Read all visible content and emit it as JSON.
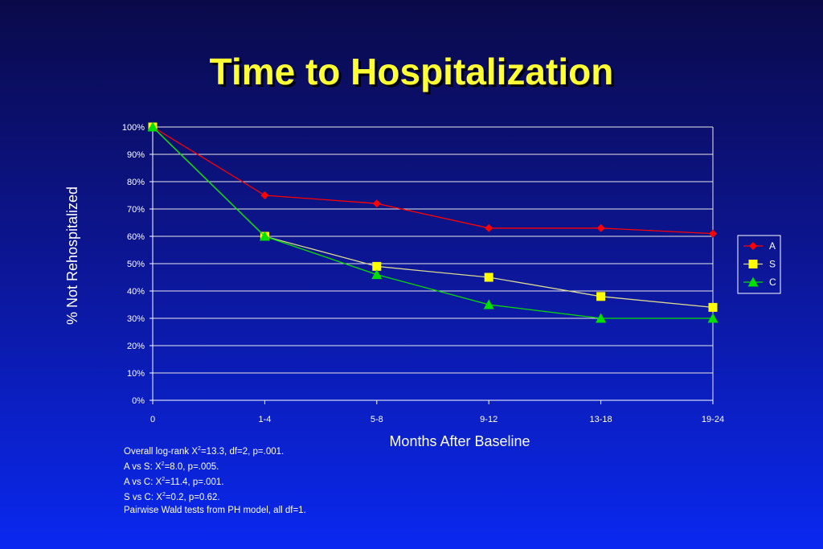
{
  "slide": {
    "title": "Time to Hospitalization"
  },
  "chart_data": {
    "type": "line",
    "categories": [
      "0",
      "1-4",
      "5-8",
      "9-12",
      "13-18",
      "19-24"
    ],
    "series": [
      {
        "name": "A",
        "values": [
          100,
          75,
          72,
          63,
          63,
          61
        ],
        "color": "#ff0000",
        "marker": "diamond"
      },
      {
        "name": "S",
        "values": [
          100,
          60,
          49,
          45,
          38,
          34
        ],
        "color": "#ffff00",
        "line_color": "#d8d890",
        "marker": "square"
      },
      {
        "name": "C",
        "values": [
          100,
          60,
          46,
          35,
          30,
          30
        ],
        "color": "#00e000",
        "marker": "triangle"
      }
    ],
    "xlabel": "Months After Baseline",
    "ylabel": "% Not Rehospitalized",
    "ylim": [
      0,
      100
    ],
    "yticks": [
      "0%",
      "10%",
      "20%",
      "30%",
      "40%",
      "50%",
      "60%",
      "70%",
      "80%",
      "90%",
      "100%"
    ],
    "grid": true,
    "legend": "right"
  },
  "stats": {
    "line1": {
      "pre": "Overall log-rank X",
      "sup": "2",
      "post": "=13.3, df=2, p=.001."
    },
    "line2": {
      "pre": "A vs S:  X",
      "sup": "2",
      "post": "=8.0, p=.005."
    },
    "line3": {
      "pre": "A vs C: X",
      "sup": "2",
      "post": "=11.4, p=.001."
    },
    "line4": {
      "pre": "S vs C: X",
      "sup": "2",
      "post": "=0.2, p=0.62."
    },
    "line5": "Pairwise Wald tests from PH model, all df=1."
  }
}
